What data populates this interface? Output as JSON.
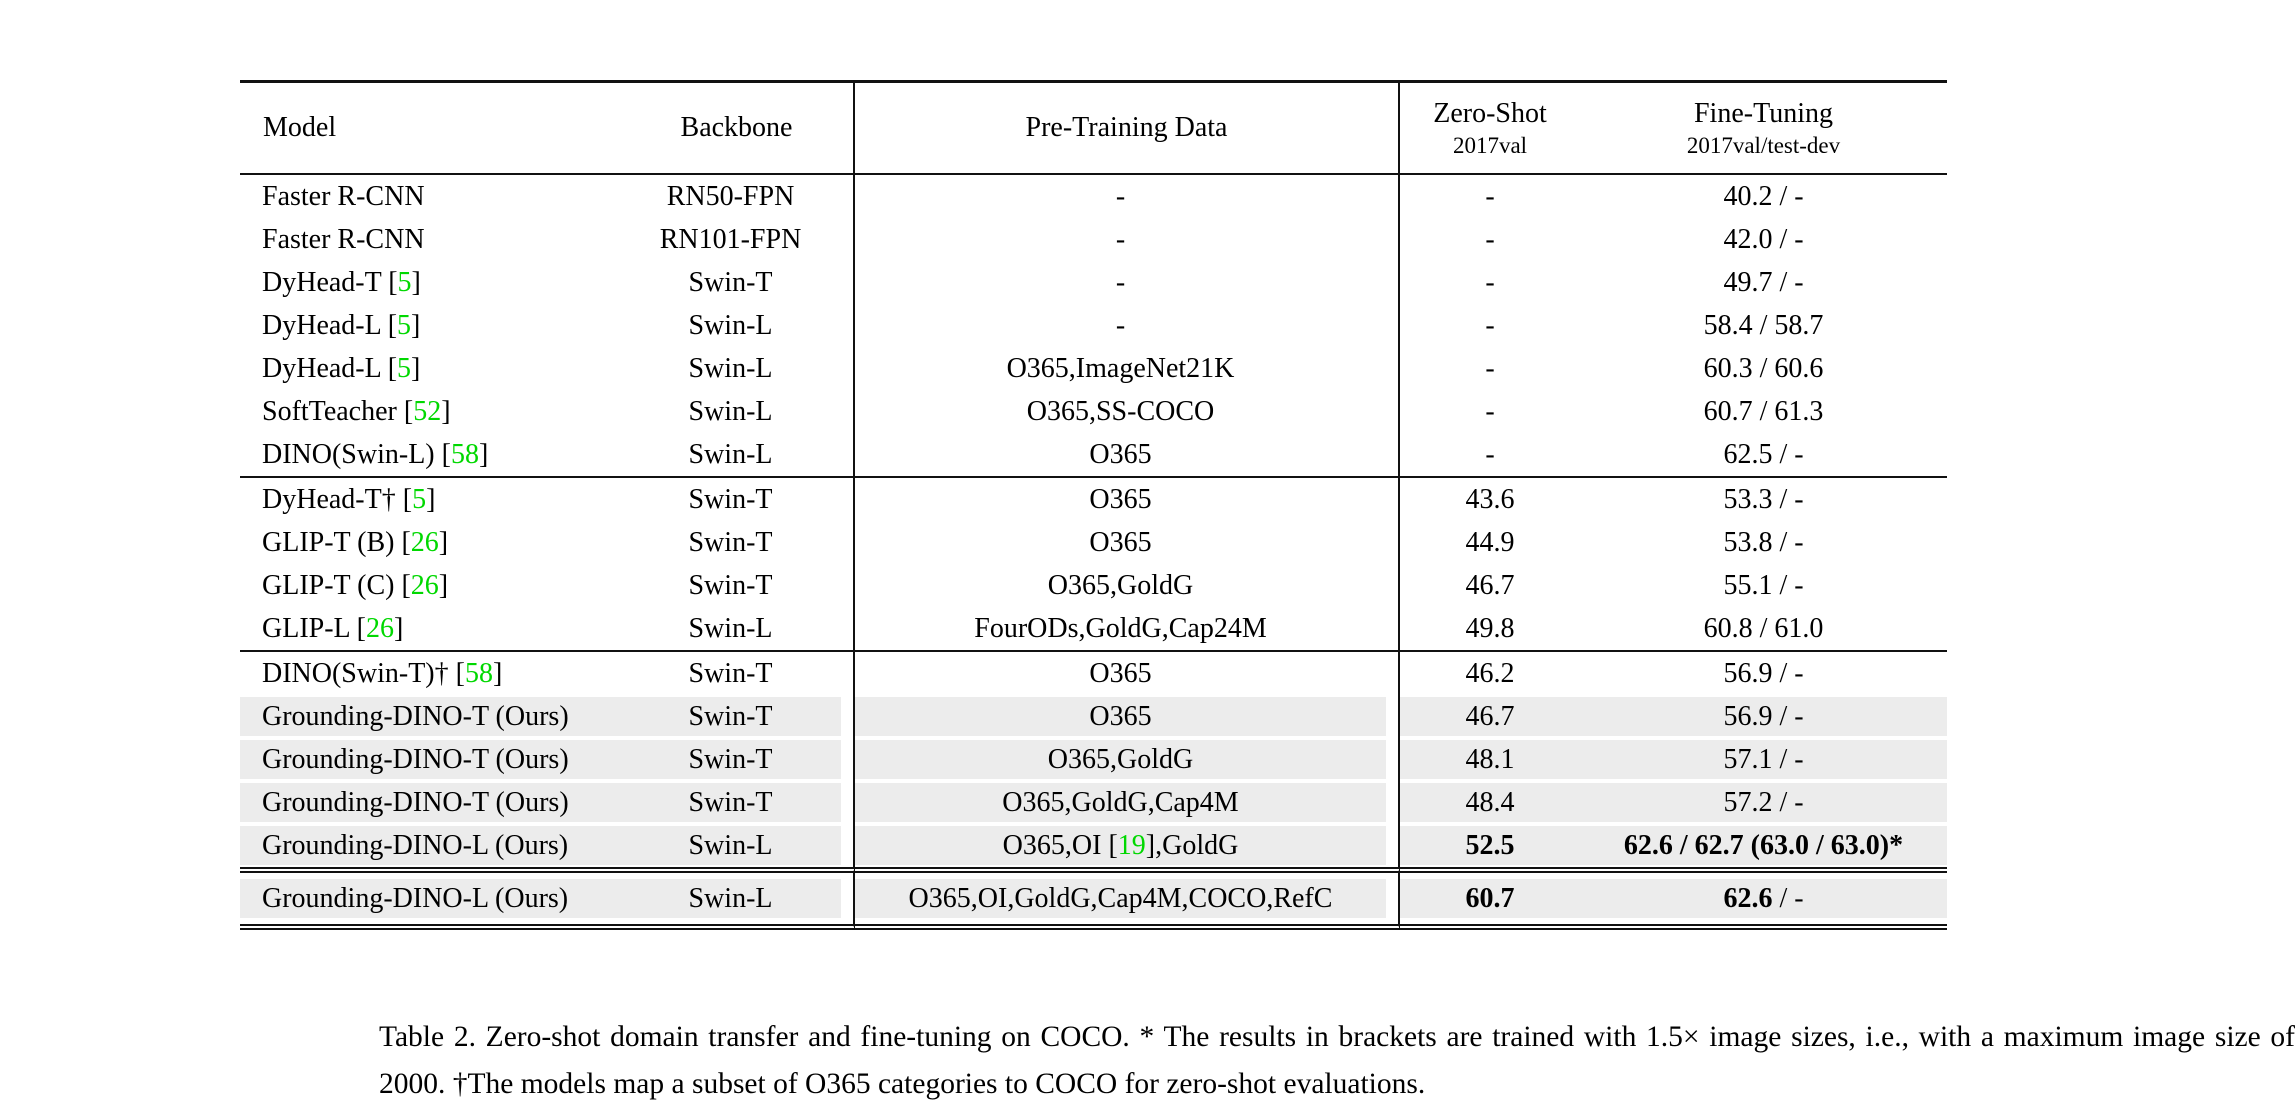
{
  "colors": {
    "citation_green": "#00d800",
    "highlight_gray": "#ececec",
    "rule_black": "#111111"
  },
  "table": {
    "headers": {
      "model": "Model",
      "backbone": "Backbone",
      "pretrain": "Pre-Training Data",
      "zeroshot_line1": "Zero-Shot",
      "zeroshot_line2": "2017val",
      "finetune_line1": "Fine-Tuning",
      "finetune_line2": "2017val/test-dev"
    },
    "groups": [
      {
        "rows": [
          {
            "model": "Faster R-CNN",
            "backbone": "RN50-FPN",
            "pretrain": "-",
            "zeroshot": "-",
            "finetune": "40.2 / -",
            "highlight": false
          },
          {
            "model": "Faster R-CNN",
            "backbone": "RN101-FPN",
            "pretrain": "-",
            "zeroshot": "-",
            "finetune": "42.0 / -",
            "highlight": false
          },
          {
            "model": "DyHead-T [5]",
            "backbone": "Swin-T",
            "pretrain": "-",
            "zeroshot": "-",
            "finetune": "49.7 / -",
            "highlight": false
          },
          {
            "model": "DyHead-L [5]",
            "backbone": "Swin-L",
            "pretrain": "-",
            "zeroshot": "-",
            "finetune": "58.4 / 58.7",
            "highlight": false
          },
          {
            "model": "DyHead-L [5]",
            "backbone": "Swin-L",
            "pretrain": "O365,ImageNet21K",
            "zeroshot": "-",
            "finetune": "60.3 / 60.6",
            "highlight": false
          },
          {
            "model": "SoftTeacher [52]",
            "backbone": "Swin-L",
            "pretrain": "O365,SS-COCO",
            "zeroshot": "-",
            "finetune": "60.7 / 61.3",
            "highlight": false
          },
          {
            "model": "DINO(Swin-L) [58]",
            "backbone": "Swin-L",
            "pretrain": "O365",
            "zeroshot": "-",
            "finetune": "62.5 / -",
            "highlight": false
          }
        ]
      },
      {
        "rows": [
          {
            "model": "DyHead-T† [5]",
            "backbone": "Swin-T",
            "pretrain": "O365",
            "zeroshot": "43.6",
            "finetune": "53.3 / -",
            "highlight": false
          },
          {
            "model": "GLIP-T (B) [26]",
            "backbone": "Swin-T",
            "pretrain": "O365",
            "zeroshot": "44.9",
            "finetune": "53.8 / -",
            "highlight": false
          },
          {
            "model": "GLIP-T (C) [26]",
            "backbone": "Swin-T",
            "pretrain": "O365,GoldG",
            "zeroshot": "46.7",
            "finetune": "55.1 / -",
            "highlight": false
          },
          {
            "model": "GLIP-L [26]",
            "backbone": "Swin-L",
            "pretrain": "FourODs,GoldG,Cap24M",
            "zeroshot": "49.8",
            "finetune": "60.8 / 61.0",
            "highlight": false
          }
        ]
      },
      {
        "rows": [
          {
            "model": "DINO(Swin-T)† [58]",
            "backbone": "Swin-T",
            "pretrain": "O365",
            "zeroshot": "46.2",
            "finetune": "56.9 / -",
            "highlight": false
          },
          {
            "model": "Grounding-DINO-T (Ours)",
            "backbone": "Swin-T",
            "pretrain": "O365",
            "zeroshot": "46.7",
            "finetune": "56.9 / -",
            "highlight": true
          },
          {
            "model": "Grounding-DINO-T (Ours)",
            "backbone": "Swin-T",
            "pretrain": "O365,GoldG",
            "zeroshot": "48.1",
            "finetune": "57.1 / -",
            "highlight": true
          },
          {
            "model": "Grounding-DINO-T (Ours)",
            "backbone": "Swin-T",
            "pretrain": "O365,GoldG,Cap4M",
            "zeroshot": "48.4",
            "finetune": "57.2 / -",
            "highlight": true
          },
          {
            "model": "Grounding-DINO-L (Ours)",
            "backbone": "Swin-L",
            "pretrain": "O365,OI [19],GoldG",
            "zeroshot": [
              {
                "text": "52.5",
                "bold": true
              }
            ],
            "finetune": [
              {
                "text": "62.6 / 62.7 (63.0 / 63.0)*",
                "bold": true
              }
            ],
            "highlight": true
          }
        ]
      },
      {
        "rows": [
          {
            "model": "Grounding-DINO-L (Ours)",
            "backbone": "Swin-L",
            "pretrain": "O365,OI,GoldG,Cap4M,COCO,RefC",
            "zeroshot": [
              {
                "text": "60.7",
                "bold": true
              }
            ],
            "finetune": [
              {
                "text": "62.6",
                "bold": true
              },
              {
                "text": " / -",
                "bold": false
              }
            ],
            "highlight": true
          }
        ]
      }
    ]
  },
  "caption": {
    "text": "Table 2.  Zero-shot domain transfer and fine-tuning on COCO. * The results in brackets are trained with 1.5× image sizes, i.e., with a maximum image size of 2000. †The models map a subset of O365 categories to COCO for zero-shot evaluations."
  }
}
